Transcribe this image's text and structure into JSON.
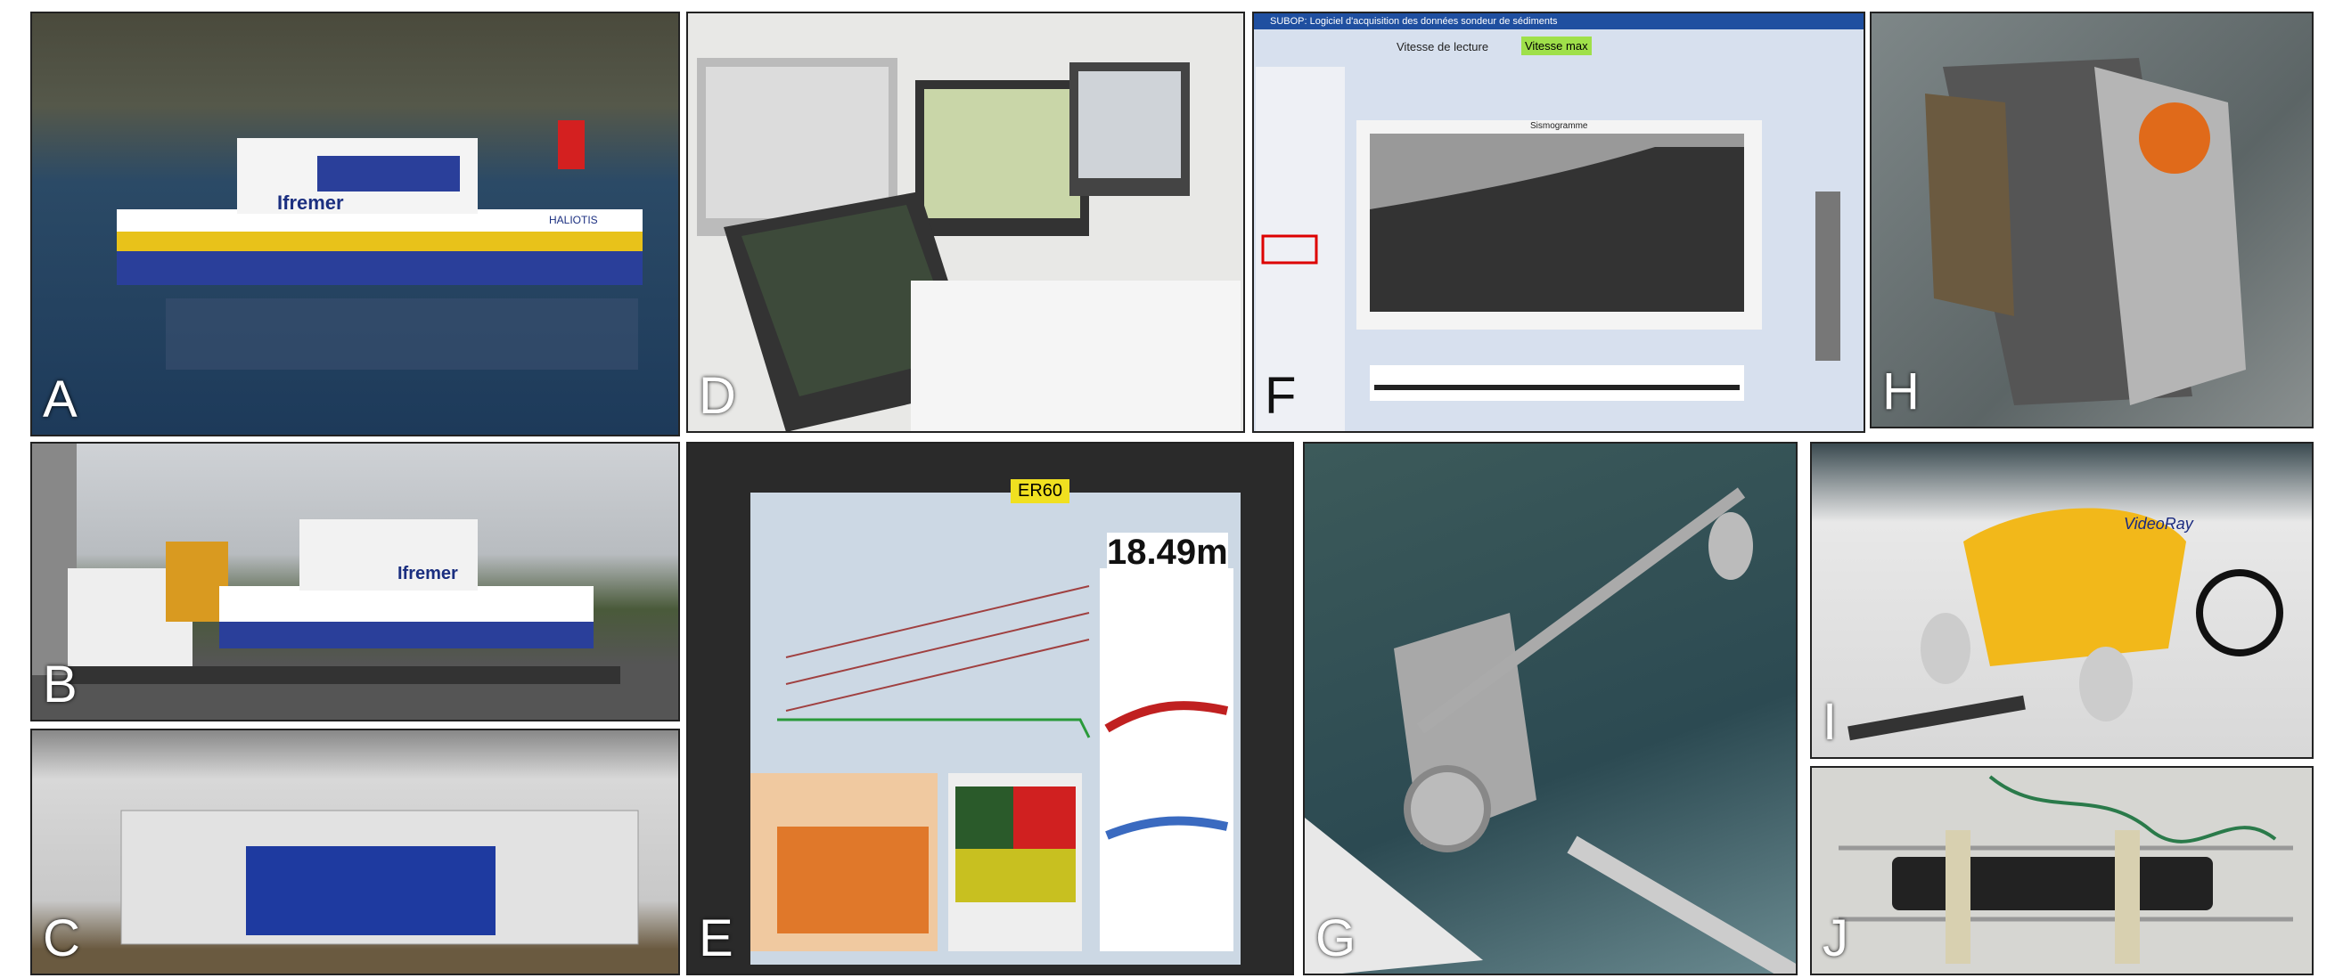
{
  "panels": [
    {
      "label": "A",
      "texts": [
        "Ifremer",
        "HALIOTIS"
      ]
    },
    {
      "label": "B",
      "texts": [
        "Ifremer"
      ]
    },
    {
      "label": "C"
    },
    {
      "label": "D"
    },
    {
      "label": "E",
      "texts": [
        "ER60",
        "18.49m"
      ]
    },
    {
      "label": "F",
      "texts": [
        "SUBOP: Logiciel d'acquisition des données sondeur de sédiments",
        "Vitesse de lecture",
        "Vitesse max",
        "Sismogramme"
      ]
    },
    {
      "label": "G"
    },
    {
      "label": "H"
    },
    {
      "label": "I",
      "texts": [
        "VideoRay"
      ]
    },
    {
      "label": "J"
    }
  ]
}
